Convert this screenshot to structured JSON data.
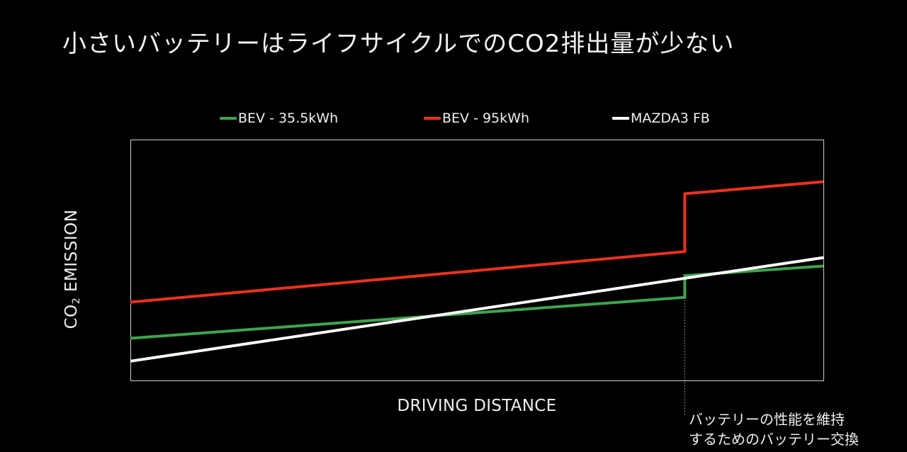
{
  "slide": {
    "title": "小さいバッテリーはライフサイクルでのCO2排出量が少ない"
  },
  "chart_data": {
    "type": "line",
    "title": "小さいバッテリーはライフサイクルでのCO2排出量が少ない",
    "xlabel": "DRIVING DISTANCE",
    "ylabel_main": "CO",
    "ylabel_sub": "2",
    "ylabel_rest": " EMISSION",
    "xlim": [
      0,
      100
    ],
    "ylim": [
      0,
      100
    ],
    "grid": false,
    "legend_position": "top",
    "series": [
      {
        "name": "BEV - 35.5kWh",
        "color": "#3fa34d",
        "points": [
          [
            0,
            17.5
          ],
          [
            80,
            34.5
          ],
          [
            80,
            43.5
          ],
          [
            100,
            47.5
          ]
        ]
      },
      {
        "name": "BEV - 95kWh",
        "color": "#e8321e",
        "points": [
          [
            0,
            32.5
          ],
          [
            80,
            53.5
          ],
          [
            80,
            77.5
          ],
          [
            100,
            82.5
          ]
        ]
      },
      {
        "name": "MAZDA3 FB",
        "color": "#ffffff",
        "points": [
          [
            0,
            8
          ],
          [
            100,
            51
          ]
        ]
      }
    ],
    "annotation": {
      "x": 80,
      "lines": [
        "バッテリーの性能を維持",
        "するためのバッテリー交換"
      ]
    }
  }
}
